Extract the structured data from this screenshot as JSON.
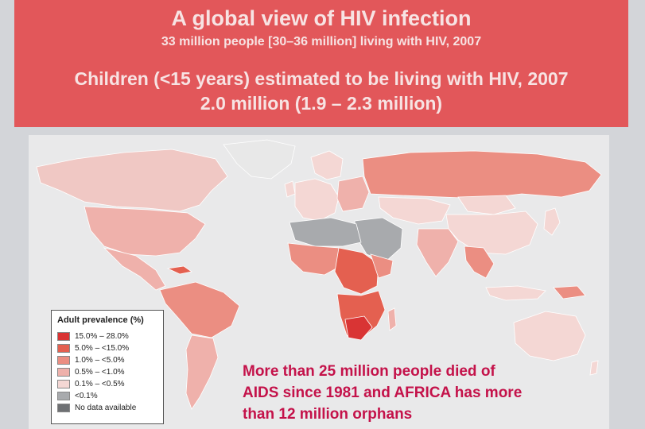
{
  "banner": {
    "title": "A global view of HIV infection",
    "subtitle": "33 million people [30–36 million] living with HIV, 2007",
    "children_line": "Children (<15 years) estimated to be living with HIV, 2007",
    "children_count": "2.0 million (1.9 – 2.3 million)"
  },
  "legend": {
    "title": "Adult prevalence (%)",
    "items": [
      {
        "label": "15.0% – 28.0%",
        "color": "#d93434"
      },
      {
        "label": "5.0% – <15.0%",
        "color": "#e46050"
      },
      {
        "label": "1.0% – <5.0%",
        "color": "#eb8e82"
      },
      {
        "label": "0.5% – <1.0%",
        "color": "#efb1ab"
      },
      {
        "label": "0.1% – <0.5%",
        "color": "#f4d7d4"
      },
      {
        "label": "<0.1%",
        "color": "#a8aaad"
      },
      {
        "label": "No data available",
        "color": "#6e7073"
      }
    ]
  },
  "note": {
    "line1": "More than 25 million people died of",
    "line2": "AIDS since 1981 and AFRICA has more",
    "line3": "than 12 million orphans"
  },
  "colors": {
    "banner_bg": "#e2575a",
    "note_text": "#c4124a",
    "ocean": "#e9e9ea"
  }
}
